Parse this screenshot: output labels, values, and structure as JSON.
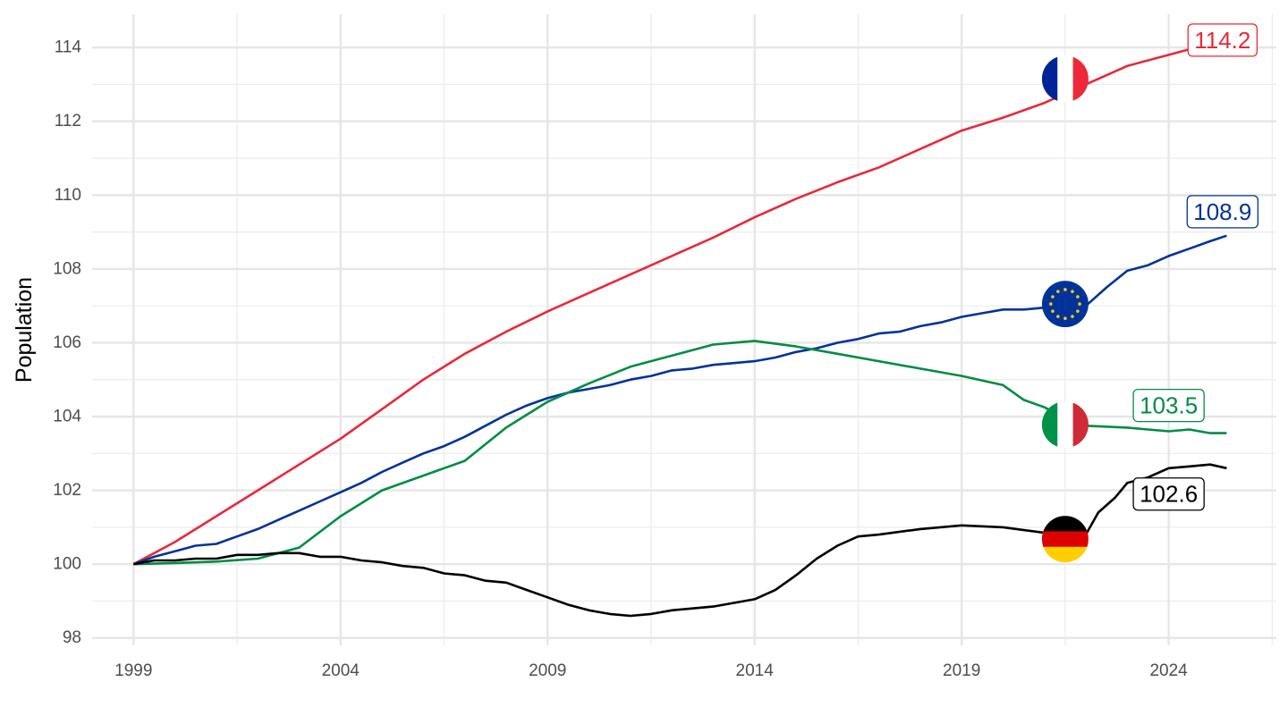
{
  "chart_data": {
    "type": "line",
    "title": "",
    "xlabel": "",
    "ylabel": "Population",
    "xlim": [
      1998.0,
      2026.6
    ],
    "ylim": [
      97.8,
      114.9
    ],
    "x_ticks": [
      1999,
      2004,
      2009,
      2014,
      2019,
      2024
    ],
    "x_tick_labels": [
      "1999",
      "2004",
      "2009",
      "2014",
      "2019",
      "2024"
    ],
    "y_ticks": [
      98,
      100,
      102,
      104,
      106,
      108,
      110,
      112,
      114
    ],
    "y_tick_labels": [
      "98",
      "100",
      "102",
      "104",
      "106",
      "108",
      "110",
      "112",
      "114"
    ],
    "grid": true,
    "legend": "none",
    "series": [
      {
        "id": "france",
        "color": "#E8293A",
        "icon": "france-flag-icon",
        "end_label": "114.2",
        "points": [
          [
            1999,
            100.0
          ],
          [
            2000,
            100.6
          ],
          [
            2001,
            101.3
          ],
          [
            2002,
            102.0
          ],
          [
            2003,
            102.7
          ],
          [
            2004,
            103.4
          ],
          [
            2005,
            104.2
          ],
          [
            2006,
            105.0
          ],
          [
            2007,
            105.7
          ],
          [
            2008,
            106.3
          ],
          [
            2009,
            106.85
          ],
          [
            2010,
            107.35
          ],
          [
            2011,
            107.85
          ],
          [
            2012,
            108.35
          ],
          [
            2013,
            108.85
          ],
          [
            2014,
            109.4
          ],
          [
            2015,
            109.9
          ],
          [
            2016,
            110.35
          ],
          [
            2017,
            110.75
          ],
          [
            2018,
            111.25
          ],
          [
            2019,
            111.75
          ],
          [
            2020,
            112.1
          ],
          [
            2021,
            112.5
          ],
          [
            2022,
            113.0
          ],
          [
            2023,
            113.5
          ],
          [
            2024,
            113.8
          ],
          [
            2025,
            114.1
          ],
          [
            2025.4,
            114.2
          ]
        ]
      },
      {
        "id": "euro-area",
        "color": "#003399",
        "icon": "eu-flag-icon",
        "end_label": "108.9",
        "points": [
          [
            1999,
            100.0
          ],
          [
            1999.5,
            100.2
          ],
          [
            2000,
            100.35
          ],
          [
            2000.5,
            100.5
          ],
          [
            2001,
            100.55
          ],
          [
            2001.5,
            100.75
          ],
          [
            2002,
            100.95
          ],
          [
            2002.5,
            101.2
          ],
          [
            2003,
            101.45
          ],
          [
            2003.5,
            101.7
          ],
          [
            2004,
            101.95
          ],
          [
            2004.5,
            102.2
          ],
          [
            2005,
            102.5
          ],
          [
            2005.5,
            102.75
          ],
          [
            2006,
            103.0
          ],
          [
            2006.5,
            103.2
          ],
          [
            2007,
            103.45
          ],
          [
            2007.5,
            103.75
          ],
          [
            2008,
            104.05
          ],
          [
            2008.5,
            104.3
          ],
          [
            2009,
            104.5
          ],
          [
            2009.5,
            104.65
          ],
          [
            2010,
            104.75
          ],
          [
            2010.5,
            104.85
          ],
          [
            2011,
            105.0
          ],
          [
            2011.5,
            105.1
          ],
          [
            2012,
            105.25
          ],
          [
            2012.5,
            105.3
          ],
          [
            2013,
            105.4
          ],
          [
            2013.5,
            105.45
          ],
          [
            2014,
            105.5
          ],
          [
            2014.5,
            105.6
          ],
          [
            2015,
            105.75
          ],
          [
            2015.5,
            105.85
          ],
          [
            2016,
            106.0
          ],
          [
            2016.5,
            106.1
          ],
          [
            2017,
            106.25
          ],
          [
            2017.5,
            106.3
          ],
          [
            2018,
            106.45
          ],
          [
            2018.5,
            106.55
          ],
          [
            2019,
            106.7
          ],
          [
            2019.5,
            106.8
          ],
          [
            2020,
            106.9
          ],
          [
            2020.5,
            106.9
          ],
          [
            2021,
            106.95
          ],
          [
            2021.5,
            106.9
          ],
          [
            2022,
            107.0
          ],
          [
            2022.5,
            107.5
          ],
          [
            2023,
            107.95
          ],
          [
            2023.5,
            108.1
          ],
          [
            2024,
            108.35
          ],
          [
            2024.5,
            108.55
          ],
          [
            2025,
            108.75
          ],
          [
            2025.4,
            108.9
          ]
        ]
      },
      {
        "id": "italy",
        "color": "#008C45",
        "icon": "italy-flag-icon",
        "end_label": "103.5",
        "points": [
          [
            1999,
            100.0
          ],
          [
            2000,
            100.03
          ],
          [
            2001,
            100.07
          ],
          [
            2002,
            100.15
          ],
          [
            2003,
            100.45
          ],
          [
            2004,
            101.3
          ],
          [
            2005,
            102.0
          ],
          [
            2006,
            102.4
          ],
          [
            2007,
            102.8
          ],
          [
            2008,
            103.7
          ],
          [
            2009,
            104.4
          ],
          [
            2010,
            104.9
          ],
          [
            2011,
            105.35
          ],
          [
            2012,
            105.65
          ],
          [
            2013,
            105.95
          ],
          [
            2014,
            106.05
          ],
          [
            2015,
            105.9
          ],
          [
            2016,
            105.7
          ],
          [
            2017,
            105.5
          ],
          [
            2018,
            105.3
          ],
          [
            2019,
            105.1
          ],
          [
            2020,
            104.85
          ],
          [
            2020.5,
            104.45
          ],
          [
            2021,
            104.25
          ],
          [
            2021.5,
            103.95
          ],
          [
            2022,
            103.75
          ],
          [
            2023,
            103.7
          ],
          [
            2023.5,
            103.65
          ],
          [
            2024,
            103.6
          ],
          [
            2024.5,
            103.65
          ],
          [
            2025,
            103.55
          ],
          [
            2025.4,
            103.55
          ]
        ]
      },
      {
        "id": "germany",
        "color": "#000000",
        "icon": "germany-flag-icon",
        "end_label": "102.6",
        "points": [
          [
            1999,
            100.0
          ],
          [
            1999.5,
            100.1
          ],
          [
            2000,
            100.1
          ],
          [
            2000.5,
            100.15
          ],
          [
            2001,
            100.15
          ],
          [
            2001.5,
            100.25
          ],
          [
            2002,
            100.25
          ],
          [
            2002.5,
            100.3
          ],
          [
            2003,
            100.3
          ],
          [
            2003.5,
            100.2
          ],
          [
            2004,
            100.2
          ],
          [
            2004.5,
            100.1
          ],
          [
            2005,
            100.05
          ],
          [
            2005.5,
            99.95
          ],
          [
            2006,
            99.9
          ],
          [
            2006.5,
            99.75
          ],
          [
            2007,
            99.7
          ],
          [
            2007.5,
            99.55
          ],
          [
            2008,
            99.5
          ],
          [
            2008.5,
            99.3
          ],
          [
            2009,
            99.1
          ],
          [
            2009.5,
            98.9
          ],
          [
            2010,
            98.75
          ],
          [
            2010.5,
            98.65
          ],
          [
            2011,
            98.6
          ],
          [
            2011.5,
            98.65
          ],
          [
            2012,
            98.75
          ],
          [
            2012.5,
            98.8
          ],
          [
            2013,
            98.85
          ],
          [
            2013.5,
            98.95
          ],
          [
            2014,
            99.05
          ],
          [
            2014.5,
            99.3
          ],
          [
            2015,
            99.7
          ],
          [
            2015.5,
            100.15
          ],
          [
            2016,
            100.5
          ],
          [
            2016.5,
            100.75
          ],
          [
            2017,
            100.8
          ],
          [
            2018,
            100.95
          ],
          [
            2019,
            101.05
          ],
          [
            2020,
            101.0
          ],
          [
            2021,
            100.85
          ],
          [
            2021.5,
            100.75
          ],
          [
            2022,
            100.8
          ],
          [
            2022.3,
            101.4
          ],
          [
            2022.7,
            101.8
          ],
          [
            2023,
            102.2
          ],
          [
            2023.5,
            102.35
          ],
          [
            2024,
            102.6
          ],
          [
            2024.5,
            102.65
          ],
          [
            2025,
            102.7
          ],
          [
            2025.4,
            102.6
          ]
        ]
      }
    ],
    "flag_markers": [
      {
        "series": "france",
        "x": 2021.5,
        "y": 113.15,
        "icon": "france-flag-icon",
        "colors": [
          "#002395",
          "#FFFFFF",
          "#ED2939"
        ],
        "orientation": "vertical"
      },
      {
        "series": "euro-area",
        "x": 2021.5,
        "y": 107.05,
        "icon": "eu-flag-icon",
        "colors": [
          "#003399",
          "#FFCC00"
        ],
        "orientation": "stars"
      },
      {
        "series": "italy",
        "x": 2021.5,
        "y": 103.78,
        "icon": "italy-flag-icon",
        "colors": [
          "#009246",
          "#FFFFFF",
          "#CE2B37"
        ],
        "orientation": "vertical"
      },
      {
        "series": "germany",
        "x": 2021.5,
        "y": 100.68,
        "icon": "germany-flag-icon",
        "colors": [
          "#000000",
          "#DD0000",
          "#FFCE00"
        ],
        "orientation": "horizontal"
      }
    ],
    "end_labels": [
      {
        "series": "france",
        "text": "114.2",
        "x": 2025.3,
        "y": 114.2,
        "color": "#E8293A"
      },
      {
        "series": "euro-area",
        "text": "108.9",
        "x": 2025.3,
        "y": 109.55,
        "color": "#003399"
      },
      {
        "series": "italy",
        "text": "103.5",
        "x": 2024.0,
        "y": 104.3,
        "color": "#008C45"
      },
      {
        "series": "germany",
        "text": "102.6",
        "x": 2024.0,
        "y": 101.9,
        "color": "#000000"
      }
    ]
  }
}
